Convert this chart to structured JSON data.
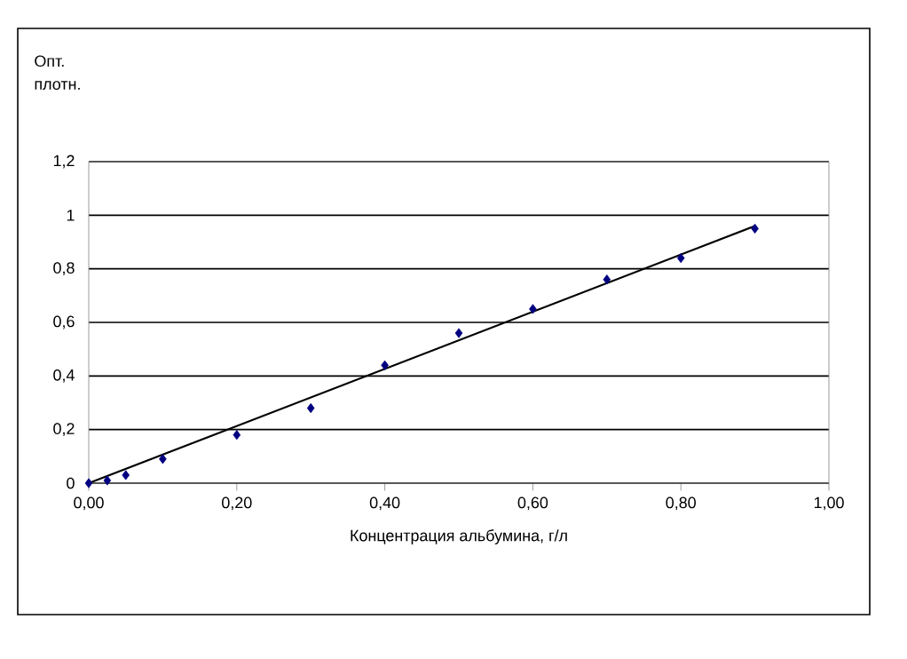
{
  "chart_data": {
    "type": "scatter",
    "xlabel": "Концентрация альбумина, г/л",
    "ylabel": "Опт. плотн.",
    "xlim": [
      0,
      1
    ],
    "ylim": [
      0,
      1.2
    ],
    "xticks": [
      {
        "value": 0,
        "label": "0,00"
      },
      {
        "value": 0.2,
        "label": "0,20"
      },
      {
        "value": 0.4,
        "label": "0,40"
      },
      {
        "value": 0.6,
        "label": "0,60"
      },
      {
        "value": 0.8,
        "label": "0,80"
      },
      {
        "value": 1,
        "label": "1,00"
      }
    ],
    "yticks": [
      0,
      {
        "value": 0.2,
        "label": "0,2"
      },
      {
        "value": 0.4,
        "label": "0,4"
      },
      {
        "value": 0.6,
        "label": "0,6"
      },
      {
        "value": 0.8,
        "label": "0,8"
      },
      1,
      {
        "value": 1.2,
        "label": "1,2"
      }
    ],
    "grid": "y",
    "series": [
      {
        "color": "#000080",
        "marker": "diamond",
        "x": [
          0,
          0.025,
          0.05,
          0.1,
          0.2,
          0.3,
          0.4,
          0.5,
          0.6,
          0.7,
          0.8,
          0.9
        ],
        "values": [
          0,
          0.01,
          0.03,
          0.09,
          0.18,
          0.28,
          0.44,
          0.56,
          0.65,
          0.76,
          0.84,
          0.95
        ]
      },
      {
        "type": "line",
        "color": "#000000",
        "marker": "none",
        "x": [
          0,
          0.9
        ],
        "values": [
          0,
          0.96
        ]
      }
    ]
  }
}
